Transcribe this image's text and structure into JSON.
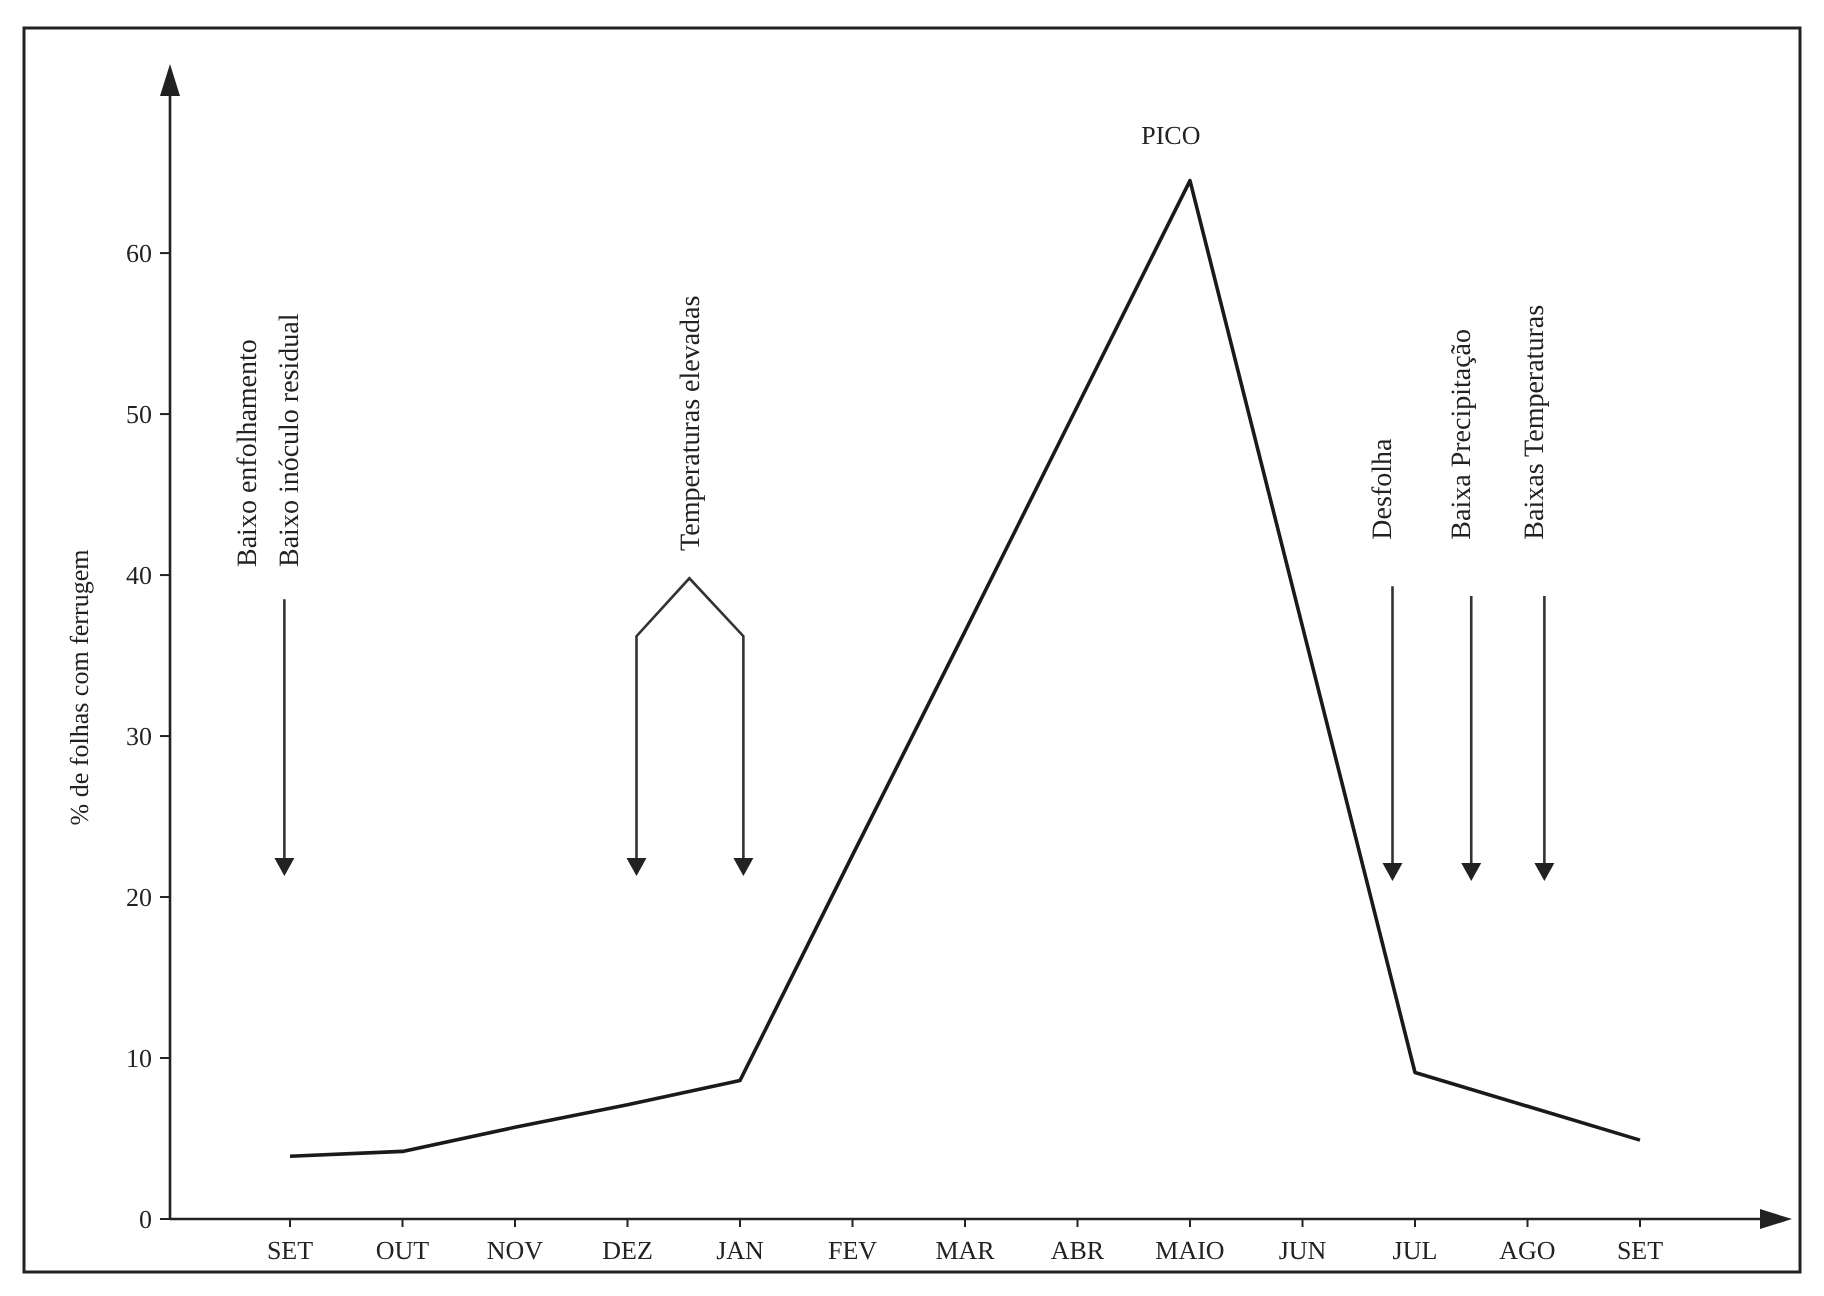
{
  "chart_data": {
    "type": "line",
    "ylabel": "% de folhas com ferrugem",
    "categories": [
      "SET",
      "OUT",
      "NOV",
      "DEZ",
      "JAN",
      "FEV",
      "MAR",
      "ABR",
      "MAIO",
      "JUN",
      "JUL",
      "AGO",
      "SET"
    ],
    "values": [
      3.9,
      4.2,
      5.7,
      7.1,
      8.6,
      22.6,
      36.5,
      50.5,
      64.5,
      36.8,
      9.1,
      7.0,
      4.9
    ],
    "color": "#1a1a1a",
    "ylim": [
      0,
      71
    ],
    "yticks": [
      0,
      10,
      20,
      30,
      40,
      50,
      60
    ],
    "annotations": [
      "Baixo enfolhamento\nBaixo inóculo residual",
      "Temperaturas elevadas",
      "PICO",
      "Desfolha",
      "Baixa Precipitação",
      "Baixas Temperaturas"
    ]
  }
}
